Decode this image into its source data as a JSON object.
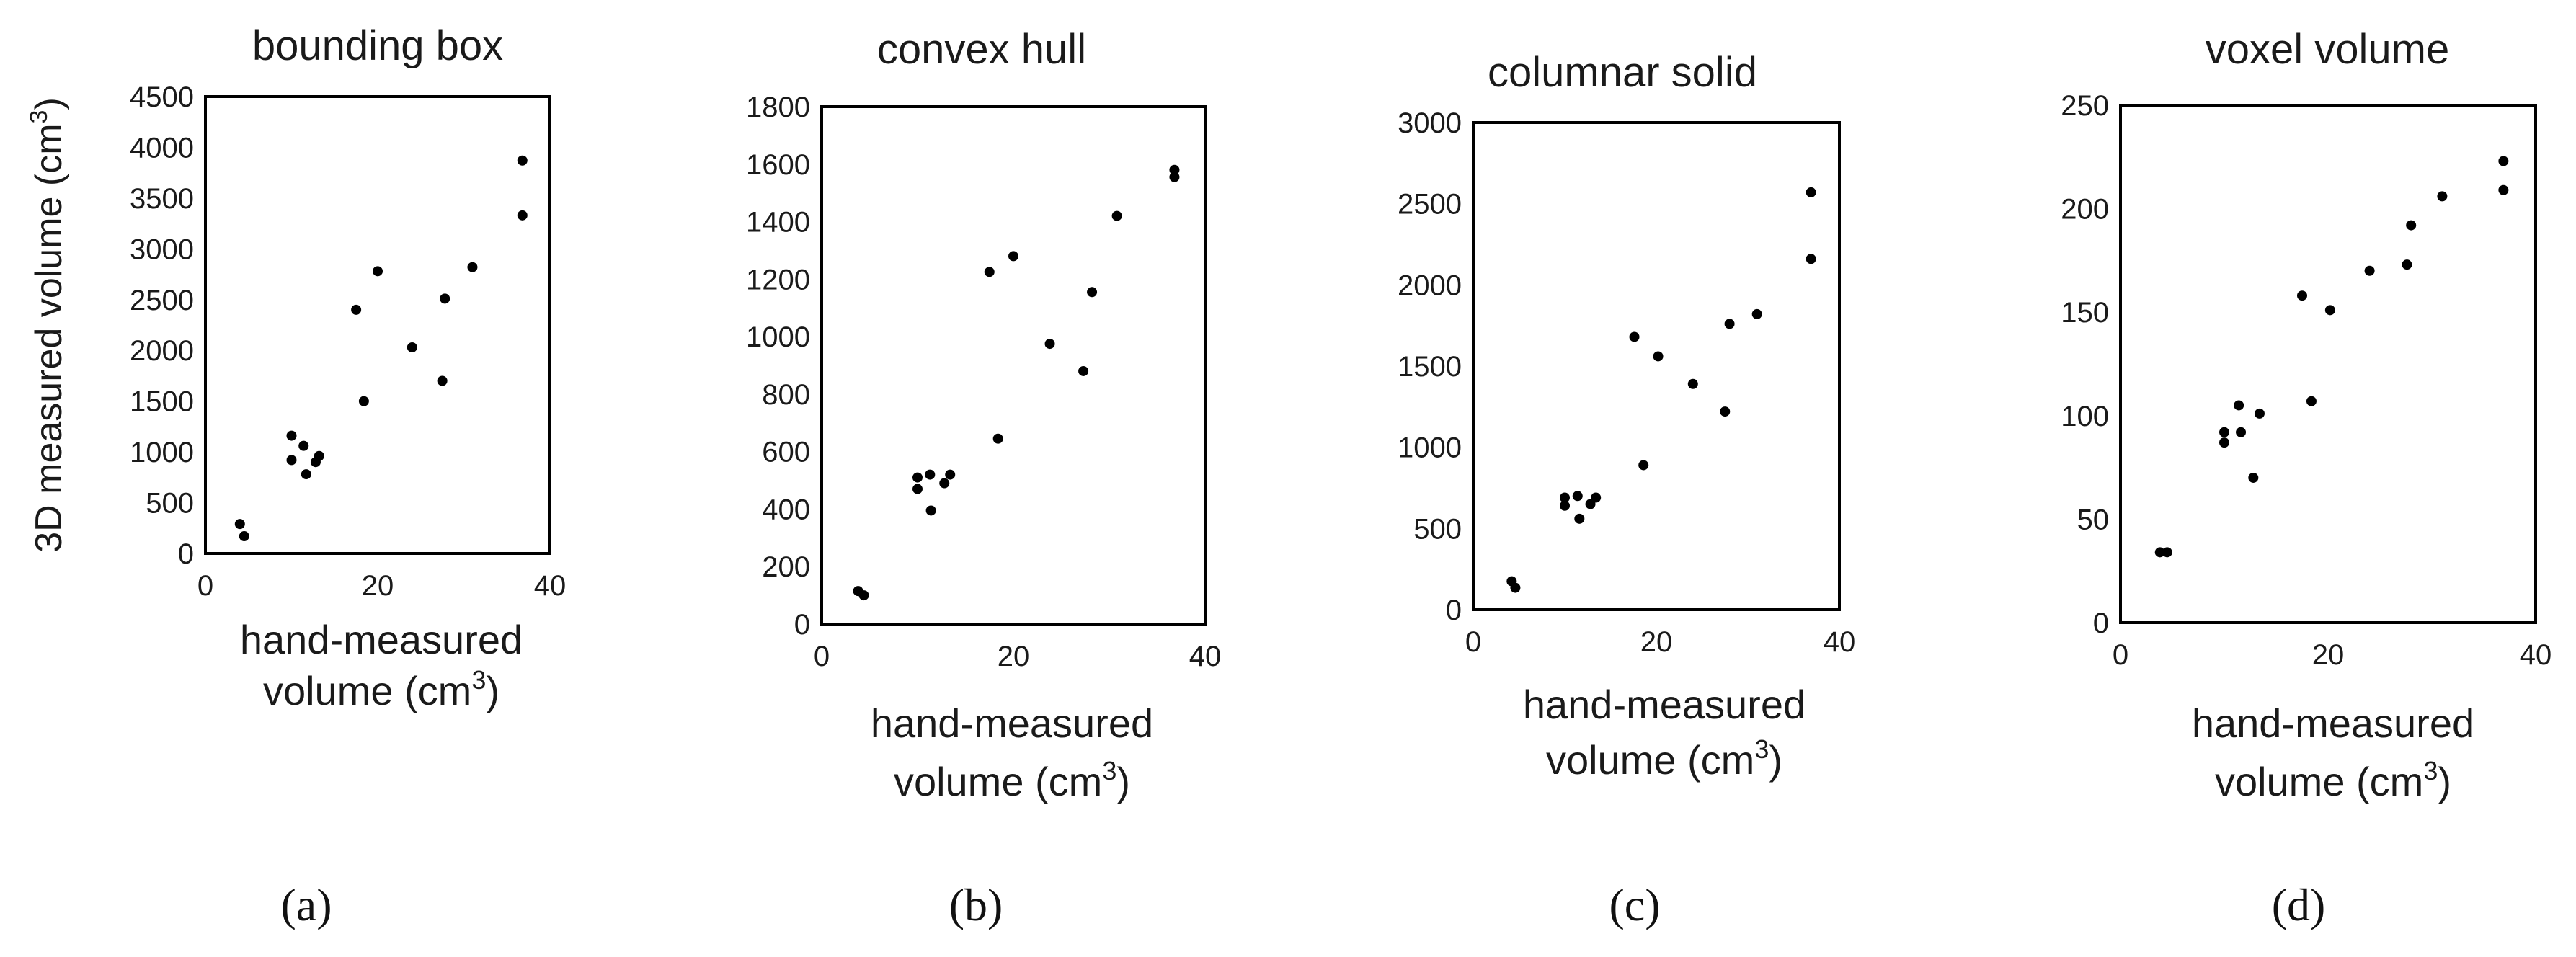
{
  "chart_data": [
    {
      "type": "scatter",
      "panel_label": "(a)",
      "title": "bounding box",
      "xlabel_line1": "hand-measured",
      "xlabel_line2": "volume (cm",
      "xlabel_sup": "3",
      "xlabel_close": ")",
      "ylabel": "3D measured volume (cm",
      "ylabel_sup": "3",
      "ylabel_close": ")",
      "xlim": [
        0,
        40
      ],
      "ylim": [
        0,
        4500
      ],
      "xticks": [
        0,
        20,
        40
      ],
      "yticks": [
        0,
        500,
        1000,
        1500,
        2000,
        2500,
        3000,
        3500,
        4000,
        4500
      ],
      "grid": false,
      "points": [
        {
          "x": 4.0,
          "y": 290
        },
        {
          "x": 4.5,
          "y": 170
        },
        {
          "x": 10.0,
          "y": 1160
        },
        {
          "x": 10.0,
          "y": 920
        },
        {
          "x": 11.4,
          "y": 1060
        },
        {
          "x": 11.7,
          "y": 780
        },
        {
          "x": 12.8,
          "y": 900
        },
        {
          "x": 13.2,
          "y": 960
        },
        {
          "x": 17.5,
          "y": 2400
        },
        {
          "x": 18.4,
          "y": 1500
        },
        {
          "x": 20.0,
          "y": 2780
        },
        {
          "x": 24.0,
          "y": 2030
        },
        {
          "x": 27.5,
          "y": 1700
        },
        {
          "x": 27.8,
          "y": 2510
        },
        {
          "x": 31.0,
          "y": 2820
        },
        {
          "x": 36.8,
          "y": 3870
        },
        {
          "x": 36.8,
          "y": 3330
        }
      ]
    },
    {
      "type": "scatter",
      "panel_label": "(b)",
      "title": "convex hull",
      "xlabel_line1": "hand-measured",
      "xlabel_line2": "volume (cm",
      "xlabel_sup": "3",
      "xlabel_close": ")",
      "xlim": [
        0,
        40
      ],
      "ylim": [
        0,
        1800
      ],
      "xticks": [
        0,
        20,
        40
      ],
      "yticks": [
        0,
        200,
        400,
        600,
        800,
        1000,
        1200,
        1400,
        1600,
        1800
      ],
      "grid": false,
      "points": [
        {
          "x": 3.8,
          "y": 115
        },
        {
          "x": 4.4,
          "y": 100
        },
        {
          "x": 10.0,
          "y": 510
        },
        {
          "x": 10.0,
          "y": 470
        },
        {
          "x": 11.3,
          "y": 520
        },
        {
          "x": 11.4,
          "y": 395
        },
        {
          "x": 12.8,
          "y": 490
        },
        {
          "x": 13.4,
          "y": 520
        },
        {
          "x": 17.5,
          "y": 1225
        },
        {
          "x": 18.4,
          "y": 645
        },
        {
          "x": 20.0,
          "y": 1280
        },
        {
          "x": 23.8,
          "y": 975
        },
        {
          "x": 27.3,
          "y": 880
        },
        {
          "x": 28.2,
          "y": 1155
        },
        {
          "x": 30.8,
          "y": 1420
        },
        {
          "x": 36.8,
          "y": 1580
        },
        {
          "x": 36.8,
          "y": 1555
        }
      ]
    },
    {
      "type": "scatter",
      "panel_label": "(c)",
      "title": "columnar solid",
      "xlabel_line1": "hand-measured",
      "xlabel_line2": "volume (cm",
      "xlabel_sup": "3",
      "xlabel_close": ")",
      "xlim": [
        0,
        40
      ],
      "ylim": [
        0,
        3000
      ],
      "xticks": [
        0,
        20,
        40
      ],
      "yticks": [
        0,
        500,
        1000,
        1500,
        2000,
        2500,
        3000
      ],
      "grid": false,
      "points": [
        {
          "x": 4.2,
          "y": 175
        },
        {
          "x": 4.6,
          "y": 135
        },
        {
          "x": 10.0,
          "y": 690
        },
        {
          "x": 10.0,
          "y": 640
        },
        {
          "x": 11.4,
          "y": 700
        },
        {
          "x": 11.6,
          "y": 560
        },
        {
          "x": 12.8,
          "y": 650
        },
        {
          "x": 13.4,
          "y": 690
        },
        {
          "x": 17.6,
          "y": 1680
        },
        {
          "x": 18.6,
          "y": 890
        },
        {
          "x": 20.2,
          "y": 1560
        },
        {
          "x": 24.0,
          "y": 1390
        },
        {
          "x": 27.5,
          "y": 1220
        },
        {
          "x": 28.0,
          "y": 1760
        },
        {
          "x": 31.0,
          "y": 1820
        },
        {
          "x": 36.9,
          "y": 2570
        },
        {
          "x": 36.9,
          "y": 2160
        }
      ]
    },
    {
      "type": "scatter",
      "panel_label": "(d)",
      "title": "voxel volume",
      "xlabel_line1": "hand-measured",
      "xlabel_line2": "volume (cm",
      "xlabel_sup": "3",
      "xlabel_close": ")",
      "xlim": [
        0,
        40
      ],
      "ylim": [
        0,
        250
      ],
      "xticks": [
        0,
        20,
        40
      ],
      "yticks": [
        0,
        50,
        100,
        150,
        200,
        250
      ],
      "grid": false,
      "points": [
        {
          "x": 3.8,
          "y": 34
        },
        {
          "x": 4.5,
          "y": 34
        },
        {
          "x": 10.0,
          "y": 92
        },
        {
          "x": 10.0,
          "y": 87
        },
        {
          "x": 11.4,
          "y": 105
        },
        {
          "x": 11.6,
          "y": 92
        },
        {
          "x": 12.8,
          "y": 70
        },
        {
          "x": 13.4,
          "y": 101
        },
        {
          "x": 17.5,
          "y": 158
        },
        {
          "x": 18.4,
          "y": 107
        },
        {
          "x": 20.2,
          "y": 151
        },
        {
          "x": 24.0,
          "y": 170
        },
        {
          "x": 27.6,
          "y": 173
        },
        {
          "x": 28.0,
          "y": 192
        },
        {
          "x": 31.0,
          "y": 206
        },
        {
          "x": 36.9,
          "y": 223
        },
        {
          "x": 36.9,
          "y": 209
        }
      ]
    }
  ]
}
